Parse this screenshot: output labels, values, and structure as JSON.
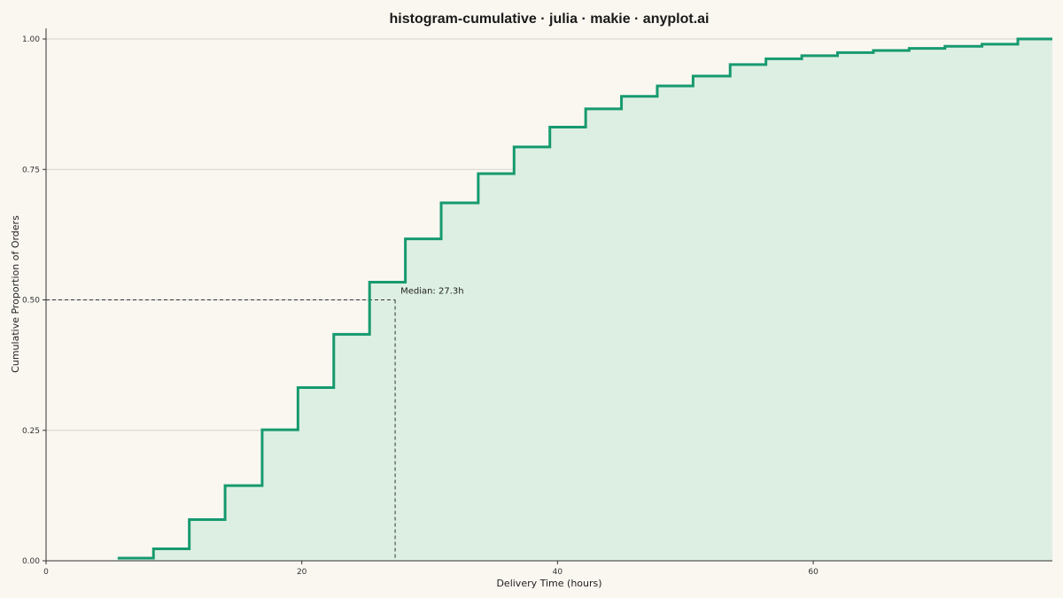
{
  "chart_data": {
    "type": "line",
    "step": "post",
    "title": "histogram-cumulative · julia · makie · anyplot.ai",
    "xlabel": "Delivery Time (hours)",
    "ylabel": "Cumulative Proportion of Orders",
    "xlim": [
      0,
      78.7
    ],
    "ylim": [
      0,
      1
    ],
    "xticks": [
      0,
      20,
      40,
      60
    ],
    "xtick_labels": [
      "0",
      "20",
      "40",
      "60"
    ],
    "yticks": [
      0,
      0.25,
      0.5,
      0.75,
      1.0
    ],
    "ytick_labels": [
      "0.00",
      "0.25",
      "0.50",
      "0.75",
      "1.00"
    ],
    "grid": true,
    "line_color": "#169A6F",
    "fill_color": "#DDEFE2",
    "bin_edges": [
      5.6,
      8.4,
      11.2,
      14.0,
      16.9,
      19.7,
      22.5,
      25.3,
      28.1,
      30.9,
      33.8,
      36.6,
      39.4,
      42.2,
      45.0,
      47.8,
      50.6,
      53.5,
      56.3,
      59.1,
      61.9,
      64.7,
      67.5,
      70.3,
      73.2,
      76.0,
      78.7
    ],
    "cumulative": [
      0.005,
      0.023,
      0.079,
      0.144,
      0.251,
      0.332,
      0.434,
      0.534,
      0.617,
      0.686,
      0.742,
      0.793,
      0.831,
      0.866,
      0.89,
      0.91,
      0.929,
      0.951,
      0.962,
      0.968,
      0.974,
      0.978,
      0.982,
      0.986,
      0.99,
      1.0
    ],
    "median": {
      "x": 27.3,
      "y": 0.5,
      "label": "Median: 27.3h"
    }
  }
}
